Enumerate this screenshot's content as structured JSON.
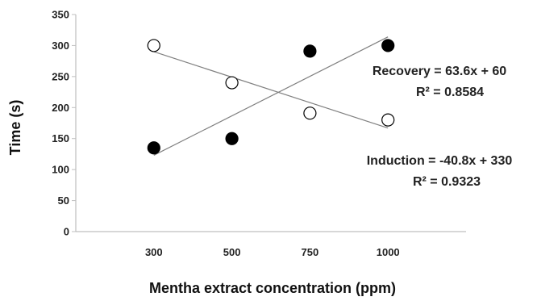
{
  "chart_data": {
    "type": "scatter",
    "xlabel": "Mentha extract concentration (ppm)",
    "ylabel": "Time (s)",
    "categories": [
      "300",
      "500",
      "750",
      "1000"
    ],
    "ylim": [
      0,
      350
    ],
    "yticks": [
      0,
      50,
      100,
      150,
      200,
      250,
      300,
      350
    ],
    "grid": false,
    "series": [
      {
        "marker": "open-circle",
        "values": [
          300,
          240,
          191,
          180
        ],
        "trendline": {
          "start": 290,
          "end": 167
        }
      },
      {
        "marker": "filled-circle",
        "values": [
          135,
          150,
          291,
          300
        ],
        "trendline": {
          "start": 123,
          "end": 314
        }
      }
    ],
    "annotations": [
      {
        "line1": "Recovery = 63.6x + 60",
        "line2": "R² = 0.8584"
      },
      {
        "line1": "Induction = -40.8x + 330",
        "line2": "R² = 0.9323"
      }
    ],
    "colors": {
      "axis": "#bfbfbf",
      "marker_stroke": "#000000",
      "open_fill": "#ffffff",
      "filled_fill": "#000000",
      "trendline": "#808080"
    }
  }
}
